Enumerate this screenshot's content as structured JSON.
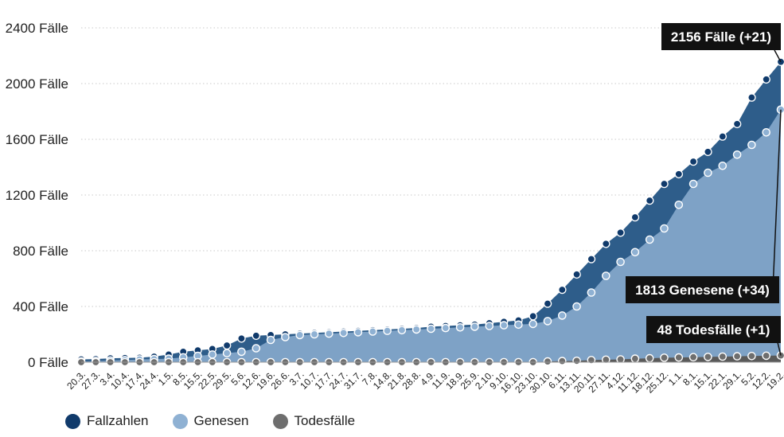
{
  "chart_data": {
    "type": "area",
    "x": [
      "20.3.",
      "27.3.",
      "3.4.",
      "10.4.",
      "17.4.",
      "24.4.",
      "1.5.",
      "8.5.",
      "15.5.",
      "22.5.",
      "29.5.",
      "5.6.",
      "12.6.",
      "19.6.",
      "26.6.",
      "3.7.",
      "10.7.",
      "17.7.",
      "24.7.",
      "31.7.",
      "7.8.",
      "14.8.",
      "21.8.",
      "28.8.",
      "4.9.",
      "11.9.",
      "18.9.",
      "25.9.",
      "2.10.",
      "9.10.",
      "16.10.",
      "23.10.",
      "30.10.",
      "6.11.",
      "13.11.",
      "20.11.",
      "27.11.",
      "4.12.",
      "11.12.",
      "18.12.",
      "25.12.",
      "1.1.",
      "8.1.",
      "15.1.",
      "22.1.",
      "29.1.",
      "5.2.",
      "12.2.",
      "19.2."
    ],
    "series": [
      {
        "name": "Fallzahlen",
        "color": "#103a6b",
        "fill": "#2e5d8a",
        "values": [
          20,
          22,
          28,
          30,
          32,
          40,
          55,
          75,
          85,
          95,
          120,
          170,
          190,
          195,
          200,
          205,
          210,
          215,
          220,
          225,
          230,
          235,
          240,
          245,
          255,
          260,
          265,
          270,
          280,
          290,
          300,
          330,
          420,
          520,
          630,
          740,
          850,
          930,
          1040,
          1160,
          1280,
          1350,
          1440,
          1510,
          1620,
          1710,
          1900,
          2030,
          2156
        ]
      },
      {
        "name": "Genesen",
        "color": "#8fb1d3",
        "fill": "#7ea2c6",
        "values": [
          5,
          8,
          12,
          15,
          20,
          22,
          25,
          35,
          45,
          55,
          65,
          75,
          100,
          160,
          180,
          195,
          200,
          205,
          210,
          215,
          220,
          225,
          230,
          235,
          240,
          245,
          250,
          255,
          260,
          265,
          270,
          275,
          295,
          335,
          400,
          500,
          620,
          720,
          790,
          880,
          960,
          1130,
          1280,
          1360,
          1410,
          1490,
          1560,
          1650,
          1813
        ]
      },
      {
        "name": "Todesfälle",
        "color": "#6e6e6e",
        "fill": "#5a5a5a",
        "values": [
          0,
          0,
          0,
          0,
          0,
          0,
          0,
          0,
          0,
          0,
          0,
          0,
          0,
          0,
          0,
          0,
          0,
          0,
          0,
          0,
          0,
          0,
          0,
          0,
          0,
          0,
          0,
          0,
          0,
          0,
          0,
          0,
          5,
          8,
          10,
          15,
          18,
          20,
          25,
          28,
          32,
          34,
          36,
          38,
          40,
          42,
          44,
          46,
          48
        ]
      }
    ],
    "y_ticks": [
      0,
      400,
      800,
      1200,
      1600,
      2000,
      2400
    ],
    "y_tick_suffix": " Fälle",
    "ylim": [
      0,
      2400
    ],
    "grid": true,
    "legend_position": "bottom-left",
    "annotations": [
      {
        "text": "2156 Fälle (+21)",
        "series": "Fallzahlen"
      },
      {
        "text": "1813 Genesene (+34)",
        "series": "Genesen"
      },
      {
        "text": "48 Todesfälle (+1)",
        "series": "Todesfälle"
      }
    ]
  }
}
